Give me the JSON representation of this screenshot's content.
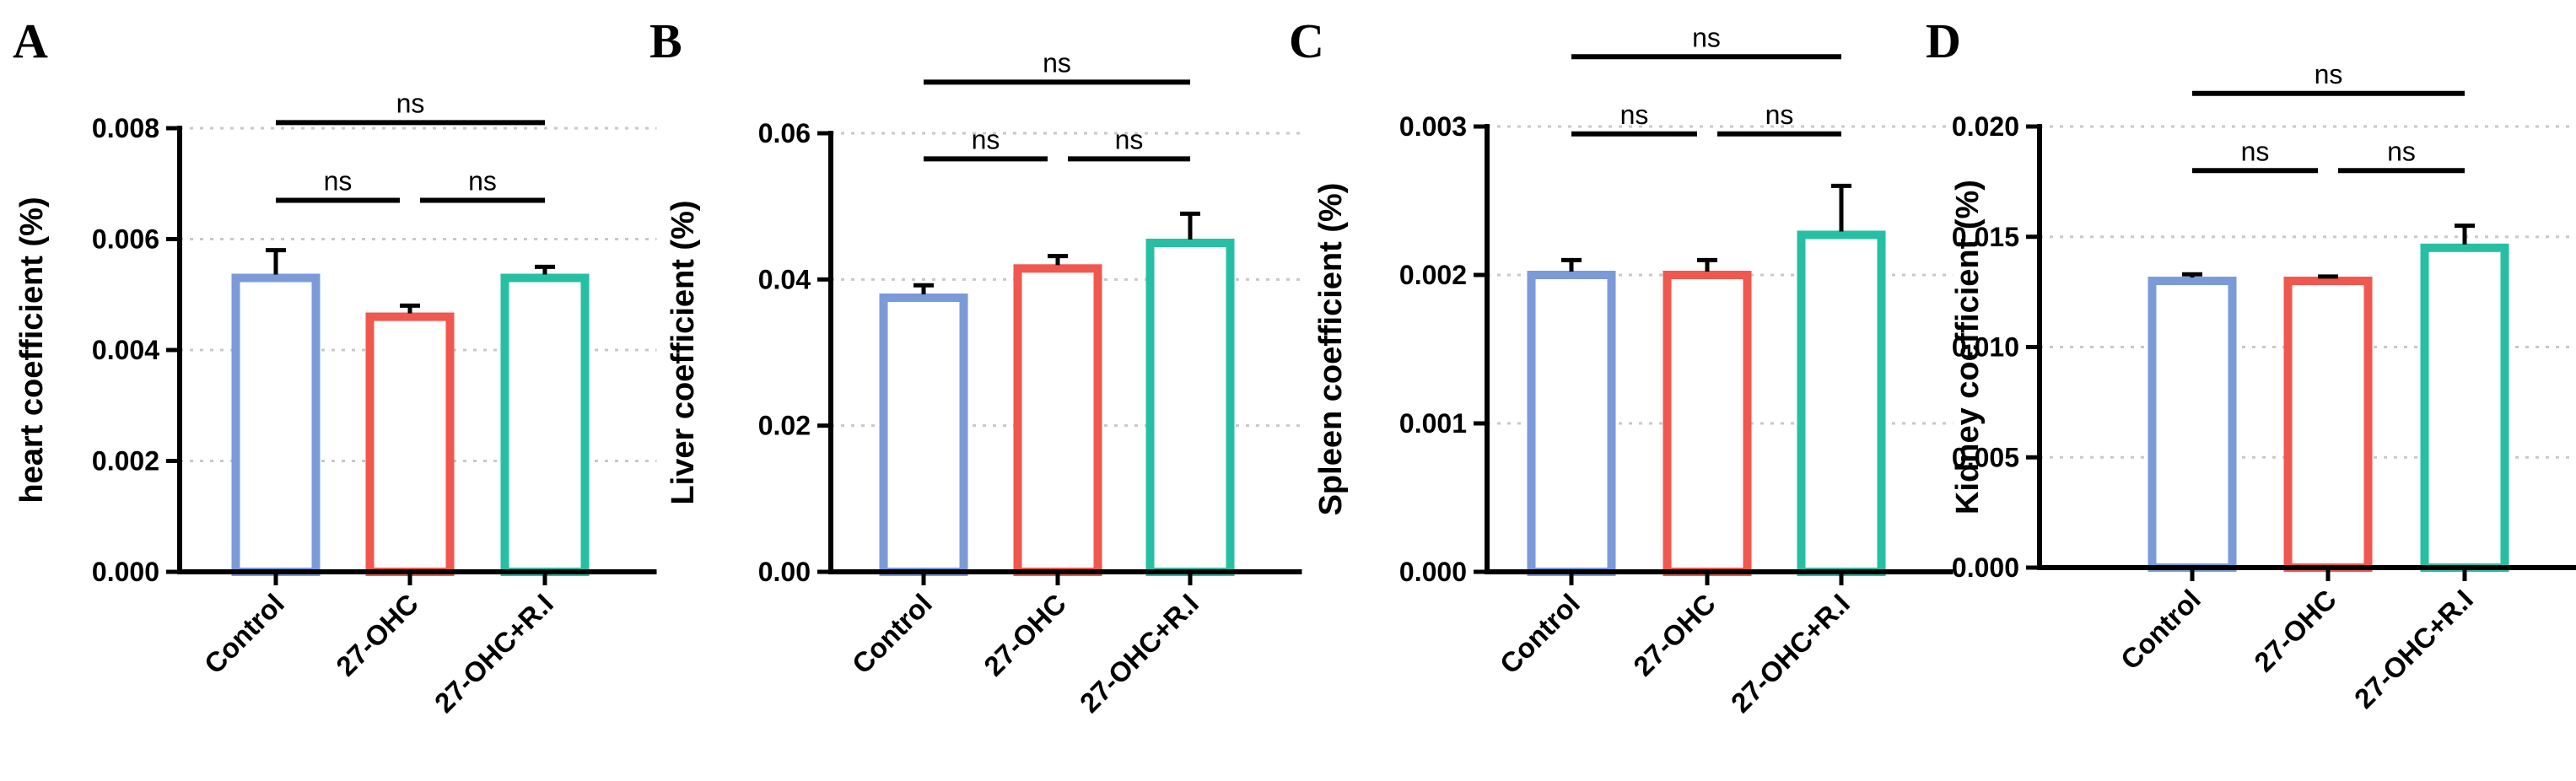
{
  "chart_data": [
    {
      "panel": "A",
      "type": "bar",
      "categories": [
        "Control",
        "27-OHC",
        "27-OHC+R.I"
      ],
      "values": [
        0.0053,
        0.0046,
        0.0053
      ],
      "errors": [
        0.0005,
        0.0002,
        0.0002
      ],
      "ylabel": "heart coefficient (%)",
      "xlabel": "",
      "ylim": [
        0,
        0.008
      ],
      "yticks": [
        "0.000",
        "0.002",
        "0.004",
        "0.006",
        "0.008"
      ],
      "comparisons": [
        {
          "from": 0,
          "to": 1,
          "label": "ns",
          "level": 0.0067
        },
        {
          "from": 1,
          "to": 2,
          "label": "ns",
          "level": 0.0067
        },
        {
          "from": 0,
          "to": 2,
          "label": "ns",
          "level": 0.0081
        }
      ],
      "colors": [
        "#7b9ad8",
        "#f0574e",
        "#27bfa4"
      ]
    },
    {
      "panel": "B",
      "type": "bar",
      "categories": [
        "Control",
        "27-OHC",
        "27-OHC+R.I"
      ],
      "values": [
        0.0375,
        0.0415,
        0.045
      ],
      "errors": [
        0.0017,
        0.0017,
        0.004
      ],
      "ylabel": "Liver coefficient (%)",
      "xlabel": "",
      "ylim": [
        0,
        0.06
      ],
      "yticks": [
        "0.00",
        "0.02",
        "0.04",
        "0.06"
      ],
      "comparisons": [
        {
          "from": 0,
          "to": 1,
          "label": "ns",
          "level": 0.0565
        },
        {
          "from": 1,
          "to": 2,
          "label": "ns",
          "level": 0.0565
        },
        {
          "from": 0,
          "to": 2,
          "label": "ns",
          "level": 0.067
        }
      ],
      "colors": [
        "#7b9ad8",
        "#f0574e",
        "#27bfa4"
      ]
    },
    {
      "panel": "C",
      "type": "bar",
      "categories": [
        "Control",
        "27-OHC",
        "27-OHC+R.I"
      ],
      "values": [
        0.002,
        0.002,
        0.00227
      ],
      "errors": [
        0.0001,
        0.0001,
        0.00033
      ],
      "ylabel": "Spleen coefficient (%)",
      "xlabel": "",
      "ylim": [
        0,
        0.003
      ],
      "yticks": [
        "0.000",
        "0.001",
        "0.002",
        "0.003"
      ],
      "comparisons": [
        {
          "from": 0,
          "to": 1,
          "label": "ns",
          "level": 0.00295
        },
        {
          "from": 1,
          "to": 2,
          "label": "ns",
          "level": 0.00295
        },
        {
          "from": 0,
          "to": 2,
          "label": "ns",
          "level": 0.00347
        }
      ],
      "colors": [
        "#7b9ad8",
        "#f0574e",
        "#27bfa4"
      ]
    },
    {
      "panel": "D",
      "type": "bar",
      "categories": [
        "Control",
        "27-OHC",
        "27-OHC+R.I"
      ],
      "values": [
        0.013,
        0.013,
        0.0145
      ],
      "errors": [
        0.0003,
        0.0002,
        0.001
      ],
      "ylabel": "Kidney coefficient (%)",
      "xlabel": "",
      "ylim": [
        0,
        0.02
      ],
      "yticks": [
        "0.000",
        "0.005",
        "0.010",
        "0.015",
        "0.020"
      ],
      "comparisons": [
        {
          "from": 0,
          "to": 1,
          "label": "ns",
          "level": 0.018
        },
        {
          "from": 1,
          "to": 2,
          "label": "ns",
          "level": 0.018
        },
        {
          "from": 0,
          "to": 2,
          "label": "ns",
          "level": 0.0215
        }
      ],
      "colors": [
        "#7b9ad8",
        "#f0574e",
        "#27bfa4"
      ]
    }
  ]
}
